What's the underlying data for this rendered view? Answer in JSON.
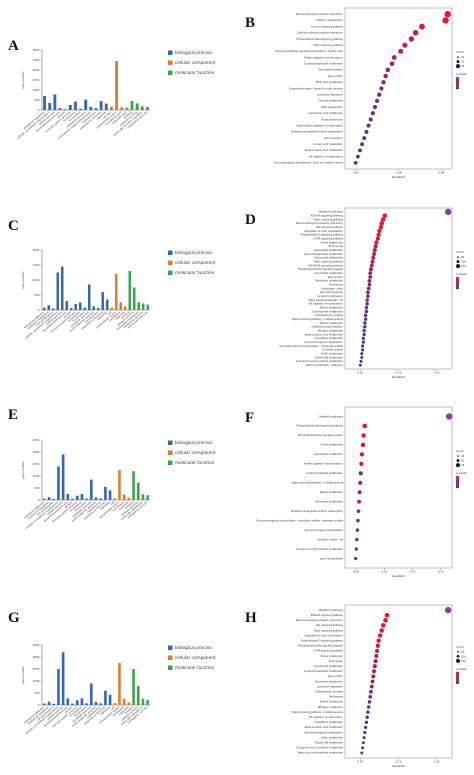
{
  "figure": {
    "letters": [
      "A",
      "B",
      "C",
      "D",
      "E",
      "F",
      "G",
      "H"
    ],
    "go_legend": [
      "biological process",
      "cellular component",
      "molecular function"
    ],
    "go_colors": {
      "biological process": "#3366bb",
      "cellular component": "#e07b2a",
      "molecular function": "#3aa64a"
    },
    "go_ylabel": "gene number",
    "kegg_xlabel": "GeneRatio",
    "dot_low_color": "#2c3e9e",
    "dot_high_color": "#e8162c"
  },
  "chart_data": [
    {
      "panel": "A",
      "type": "bar",
      "ylabel": "gene number",
      "ylim": [
        0,
        3000
      ],
      "yticks": [
        "0",
        "500",
        "1000",
        "1500",
        "2000",
        "2500",
        "3000"
      ],
      "categories": [
        "biological regulation",
        "cellular component organization",
        "cellular process",
        "developmental process",
        "growth",
        "immune system process",
        "localization",
        "locomotion",
        "metabolic process",
        "multicellular organismal process",
        "reproduction",
        "response to stimulus",
        "signaling",
        "cell part",
        "extracellular region",
        "membrane part",
        "organelle part",
        "binding",
        "catalytic activity",
        "molecular function regulator",
        "transporter activity"
      ],
      "groups": [
        "biological process",
        "biological process",
        "biological process",
        "biological process",
        "biological process",
        "biological process",
        "biological process",
        "biological process",
        "biological process",
        "biological process",
        "biological process",
        "biological process",
        "biological process",
        "cellular component",
        "cellular component",
        "cellular component",
        "cellular component",
        "molecular function",
        "molecular function",
        "molecular function",
        "molecular function"
      ],
      "values": [
        700,
        350,
        780,
        90,
        40,
        250,
        420,
        60,
        520,
        160,
        90,
        450,
        320,
        160,
        2450,
        140,
        120,
        450,
        330,
        180,
        150
      ]
    },
    {
      "panel": "C",
      "type": "bar",
      "ylabel": "gene number",
      "ylim": [
        0,
        2000
      ],
      "yticks": [
        "0",
        "500",
        "1000",
        "1500",
        "2000"
      ],
      "categories": [
        "biological adhesion",
        "biological regulation",
        "cell proliferation",
        "cellular component organization",
        "cellular process",
        "developmental process",
        "growth",
        "immune system process",
        "localization",
        "locomotion",
        "metabolic process",
        "multi-organism process",
        "reproduction",
        "response to stimulus",
        "signaling",
        "cell",
        "extracellular region",
        "membrane",
        "organelle",
        "binding",
        "catalytic activity",
        "molecular transducer",
        "transporter activity",
        "structural molecule"
      ],
      "groups": [
        "biological process",
        "biological process",
        "biological process",
        "biological process",
        "biological process",
        "biological process",
        "biological process",
        "biological process",
        "biological process",
        "biological process",
        "biological process",
        "biological process",
        "biological process",
        "biological process",
        "biological process",
        "cellular component",
        "cellular component",
        "cellular component",
        "cellular component",
        "molecular function",
        "molecular function",
        "molecular function",
        "molecular function",
        "molecular function"
      ],
      "values": [
        80,
        160,
        50,
        1250,
        1450,
        300,
        60,
        200,
        250,
        80,
        850,
        120,
        70,
        600,
        350,
        80,
        1200,
        260,
        120,
        1300,
        750,
        260,
        220,
        180
      ]
    },
    {
      "panel": "E",
      "type": "bar",
      "ylabel": "gene number",
      "ylim": [
        0,
        2500
      ],
      "yticks": [
        "0",
        "500",
        "1000",
        "1500",
        "2000",
        "2500"
      ],
      "categories": [
        "biological adhesion",
        "biological regulation",
        "cell proliferation",
        "cellular component organization",
        "cellular process",
        "developmental process",
        "growth",
        "immune system process",
        "localization",
        "locomotion",
        "metabolic process",
        "multi-organism process",
        "reproduction",
        "response to stimulus",
        "signaling",
        "cell",
        "extracellular region",
        "membrane",
        "organelle",
        "binding",
        "catalytic activity",
        "molecular transducer",
        "transporter activity"
      ],
      "groups": [
        "biological process",
        "biological process",
        "biological process",
        "biological process",
        "biological process",
        "biological process",
        "biological process",
        "biological process",
        "biological process",
        "biological process",
        "biological process",
        "biological process",
        "biological process",
        "biological process",
        "biological process",
        "cellular component",
        "cellular component",
        "cellular component",
        "cellular component",
        "molecular function",
        "molecular function",
        "molecular function",
        "molecular function"
      ],
      "values": [
        50,
        120,
        40,
        1400,
        1900,
        250,
        50,
        180,
        250,
        60,
        850,
        110,
        60,
        550,
        400,
        70,
        1250,
        230,
        100,
        1200,
        720,
        240,
        200
      ]
    },
    {
      "panel": "G",
      "type": "bar",
      "ylabel": "gene number",
      "ylim": [
        0,
        2500
      ],
      "yticks": [
        "0",
        "500",
        "1000",
        "1500",
        "2000",
        "2500"
      ],
      "categories": [
        "biological adhesion",
        "biological regulation",
        "cell proliferation",
        "cellular component organization",
        "cellular process",
        "developmental process",
        "growth",
        "immune system process",
        "localization",
        "locomotion",
        "metabolic process",
        "multi-organism process",
        "reproduction",
        "response to stimulus",
        "signaling",
        "cell",
        "extracellular region",
        "membrane",
        "organelle",
        "binding",
        "catalytic activity",
        "molecular transducer",
        "transporter activity"
      ],
      "groups": [
        "biological process",
        "biological process",
        "biological process",
        "biological process",
        "biological process",
        "biological process",
        "biological process",
        "biological process",
        "biological process",
        "biological process",
        "biological process",
        "biological process",
        "biological process",
        "biological process",
        "biological process",
        "cellular component",
        "cellular component",
        "cellular component",
        "cellular component",
        "molecular function",
        "molecular function",
        "molecular function",
        "molecular function"
      ],
      "values": [
        60,
        140,
        50,
        1500,
        2200,
        280,
        60,
        200,
        280,
        70,
        900,
        130,
        70,
        600,
        420,
        80,
        1750,
        260,
        110,
        1500,
        800,
        260,
        220
      ]
    },
    {
      "panel": "B",
      "type": "scatter",
      "xlabel": "GeneRatio",
      "xticks": [
        "0.04",
        "0.06",
        "0.08"
      ],
      "xlim": [
        0.035,
        0.085
      ],
      "size_legend_title": "Count",
      "size_legend": [
        "10",
        "20",
        "30"
      ],
      "color_legend_title": "p.adjust",
      "categories": [
        "Neuroactive ligand-receptor interaction",
        "Olfactory transduction",
        "Calcium signaling pathway",
        "Cytokine-cytokine receptor interaction",
        "Phosphatidylinositol signaling pathway",
        "Hippo signaling pathway",
        "Signaling pathways regulating pluripotency of stem cells",
        "Protein digestion and absorption",
        "Glycerophospholipid metabolism",
        "Pancreatic secretion",
        "Gap junction",
        "Ether lipid metabolism",
        "Extracellular matrix interaction with cytokine",
        "Long-term depression",
        "Glucose metabolism",
        "Taste transduction",
        "Arachidonic acid metabolism",
        "Nicotine addiction",
        "Carbohydrate digestion and absorption",
        "Aldosterone-regulated sodium reabsorption",
        "Renin secretion",
        "Linoleic acid metabolism",
        "alpha-Linolenic acid metabolism",
        "Fat digestion and absorption",
        "Glycosphingolipid biosynthesis - lacto and neolacto series"
      ],
      "x": [
        0.083,
        0.082,
        0.071,
        0.068,
        0.066,
        0.063,
        0.061,
        0.058,
        0.057,
        0.055,
        0.054,
        0.053,
        0.052,
        0.051,
        0.05,
        0.049,
        0.048,
        0.047,
        0.046,
        0.045,
        0.044,
        0.043,
        0.042,
        0.041,
        0.04
      ],
      "size": [
        30,
        30,
        22,
        20,
        18,
        16,
        14,
        12,
        12,
        11,
        10,
        10,
        9,
        9,
        8,
        8,
        8,
        7,
        7,
        7,
        6,
        6,
        6,
        5,
        5
      ],
      "padjust_rank": [
        1.0,
        1.0,
        0.92,
        0.9,
        0.85,
        0.85,
        0.8,
        0.7,
        0.6,
        0.55,
        0.55,
        0.5,
        0.45,
        0.4,
        0.35,
        0.3,
        0.3,
        0.25,
        0.2,
        0.2,
        0.15,
        0.12,
        0.1,
        0.05,
        0.0
      ]
    },
    {
      "panel": "D",
      "type": "scatter",
      "xlabel": "GeneRatio",
      "xticks": [
        "0.05",
        "0.10",
        "0.15"
      ],
      "xlim": [
        0.03,
        0.17
      ],
      "size_legend_title": "Count",
      "size_legend": [
        "50",
        "100",
        "150"
      ],
      "color_legend_title": "p.adjust",
      "categories": [
        "Metabolic pathways",
        "PI3K-Akt signaling pathway",
        "Rap1 signaling pathway",
        "Neuroactive ligand-receptor interaction",
        "Ras signaling pathway",
        "Regulation of actin cytoskeleton",
        "Phospholipase D signaling pathway",
        "mTOR signaling pathway",
        "Purine metabolism",
        "Endocytosis",
        "Glycerolipid metabolism",
        "Glycerophospholipid metabolism",
        "Glycerolipid metabolism",
        "Rap1 signaling pathway",
        "AGE-RAGE signaling pathway",
        "Phosphatidylinositol signaling system",
        "Glycerolipid metabolism",
        "Gap junction",
        "Pyrimidine metabolism",
        "Peroxisome",
        "Autophagy - other",
        "Glycosaminoglycan",
        "Long-term depression",
        "Hippo signaling pathway - fly",
        "Fat digestion and absorption",
        "Retinol metabolism",
        "Carbohydrate metabolism",
        "Glutamatergic synapse",
        "Hippo signaling pathway - multiple species",
        "Retinol metabolism",
        "Oxidative phosphorylation",
        "Nitrogen metabolism",
        "alpha-Linolenic acid metabolism",
        "Cholesterol metabolism",
        "Glycosaminoglycan degradation",
        "Glycosaminoglycan biosynthesis - chondroitin sulfate",
        "Circadian rhythm",
        "Sulfur metabolism",
        "Vitamin B6 metabolism",
        "D-Arginine and D-ornithine metabolism",
        "Retinol metabolism - pathways"
      ],
      "x": [
        0.165,
        0.082,
        0.08,
        0.078,
        0.077,
        0.075,
        0.074,
        0.073,
        0.071,
        0.07,
        0.069,
        0.068,
        0.067,
        0.066,
        0.065,
        0.064,
        0.063,
        0.063,
        0.062,
        0.062,
        0.061,
        0.06,
        0.06,
        0.059,
        0.059,
        0.058,
        0.058,
        0.057,
        0.057,
        0.056,
        0.056,
        0.055,
        0.055,
        0.054,
        0.054,
        0.053,
        0.053,
        0.052,
        0.052,
        0.051,
        0.05
      ],
      "size": [
        160,
        60,
        55,
        55,
        50,
        48,
        45,
        44,
        42,
        40,
        38,
        36,
        35,
        34,
        33,
        32,
        30,
        30,
        29,
        28,
        27,
        26,
        25,
        24,
        23,
        22,
        22,
        21,
        20,
        20,
        19,
        18,
        17,
        16,
        15,
        14,
        13,
        12,
        11,
        10,
        9
      ],
      "padjust_rank": [
        0.0,
        1.0,
        1.0,
        0.95,
        0.95,
        0.9,
        0.9,
        0.85,
        0.8,
        0.8,
        0.75,
        0.7,
        0.7,
        0.65,
        0.6,
        0.6,
        0.55,
        0.5,
        0.5,
        0.45,
        0.45,
        0.4,
        0.4,
        0.35,
        0.35,
        0.3,
        0.3,
        0.25,
        0.25,
        0.2,
        0.2,
        0.15,
        0.15,
        0.12,
        0.1,
        0.1,
        0.08,
        0.06,
        0.05,
        0.03,
        0.0
      ]
    },
    {
      "panel": "F",
      "type": "scatter",
      "xlabel": "GeneRatio",
      "xticks": [
        "0.05",
        "0.10",
        "0.15",
        "0.20"
      ],
      "xlim": [
        0.03,
        0.22
      ],
      "size_legend_title": "Count",
      "size_legend": [
        "25",
        "50",
        "75"
      ],
      "color_legend_title": "p.adjust",
      "categories": [
        "Metabolic pathways",
        "Phosphatidylinositol signaling pathway",
        "Phosphatidylinositol signaling system",
        "Purine metabolism",
        "Glycerolipid metabolism",
        "Protein digestion and absorption",
        "Inositol phosphate metabolism",
        "Hippo signaling pathway - multiple species",
        "Retinol metabolism",
        "Pyrimidine metabolism",
        "Aldosterone-regulated sodium reabsorption",
        "Glycosaminoglycan biosynthesis - chondroitin sulfate / dermatan sulfate",
        "Glycosaminoglycan degradation",
        "Circadian rhythm - fly",
        "D-Arginine and D-ornithine metabolism",
        "Lysine biosynthesis"
      ],
      "x": [
        0.215,
        0.065,
        0.063,
        0.062,
        0.06,
        0.059,
        0.058,
        0.057,
        0.056,
        0.055,
        0.054,
        0.053,
        0.052,
        0.051,
        0.05,
        0.049
      ],
      "size": [
        80,
        30,
        28,
        26,
        24,
        22,
        20,
        18,
        17,
        16,
        14,
        12,
        11,
        10,
        9,
        8
      ],
      "padjust_rank": [
        0.0,
        1.0,
        1.0,
        0.95,
        0.9,
        0.85,
        0.1,
        0.75,
        0.7,
        0.65,
        0.6,
        0.5,
        0.4,
        0.3,
        0.2,
        0.1
      ]
    },
    {
      "panel": "H",
      "type": "scatter",
      "xlabel": "GeneRatio",
      "xticks": [
        "0.05",
        "0.10",
        "0.15"
      ],
      "xlim": [
        0.03,
        0.17
      ],
      "size_legend_title": "Count",
      "size_legend": [
        "50",
        "100",
        "150"
      ],
      "color_legend_title": "p.adjust",
      "categories": [
        "Metabolic pathways",
        "PI3K-Akt signaling pathway",
        "Neuroactive ligand-receptor interaction",
        "Ras signaling pathway",
        "Rap1 signaling pathway",
        "Regulation of actin cytoskeleton",
        "Phospholipase D signaling pathway",
        "Phosphatidylinositol signaling system",
        "mTOR signaling pathway",
        "Purine metabolism",
        "Endocytosis",
        "Glycerolipid metabolism",
        "Glycerophospholipid metabolism",
        "Gap junction",
        "Pyrimidine metabolism",
        "Long-term depression",
        "Glutamatergic synapse",
        "Peroxisome",
        "Retinol metabolism",
        "Nitrogen metabolism",
        "Hippo signaling pathway - multiple species",
        "Fat digestion and absorption",
        "Cholesterol metabolism",
        "alpha-Linolenic acid metabolism",
        "Glycosaminoglycan degradation",
        "Sulfur metabolism",
        "Vitamin B6 metabolism",
        "D-Arginine and D-ornithine metabolism",
        "Retinol and carbohydrate metabolism"
      ],
      "x": [
        0.165,
        0.085,
        0.083,
        0.08,
        0.078,
        0.076,
        0.074,
        0.073,
        0.072,
        0.071,
        0.07,
        0.069,
        0.068,
        0.067,
        0.066,
        0.065,
        0.064,
        0.063,
        0.062,
        0.061,
        0.06,
        0.059,
        0.058,
        0.057,
        0.056,
        0.055,
        0.054,
        0.053,
        0.052
      ],
      "size": [
        160,
        62,
        60,
        58,
        55,
        52,
        50,
        48,
        46,
        44,
        42,
        40,
        38,
        36,
        34,
        32,
        30,
        28,
        26,
        24,
        22,
        20,
        18,
        16,
        14,
        12,
        11,
        10,
        9
      ],
      "padjust_rank": [
        0.0,
        1.0,
        1.0,
        0.95,
        0.95,
        0.9,
        0.9,
        0.85,
        0.8,
        0.8,
        0.75,
        0.7,
        0.65,
        0.6,
        0.55,
        0.5,
        0.5,
        0.45,
        0.4,
        0.35,
        0.3,
        0.25,
        0.2,
        0.15,
        0.12,
        0.1,
        0.08,
        0.05,
        0.0
      ]
    }
  ]
}
